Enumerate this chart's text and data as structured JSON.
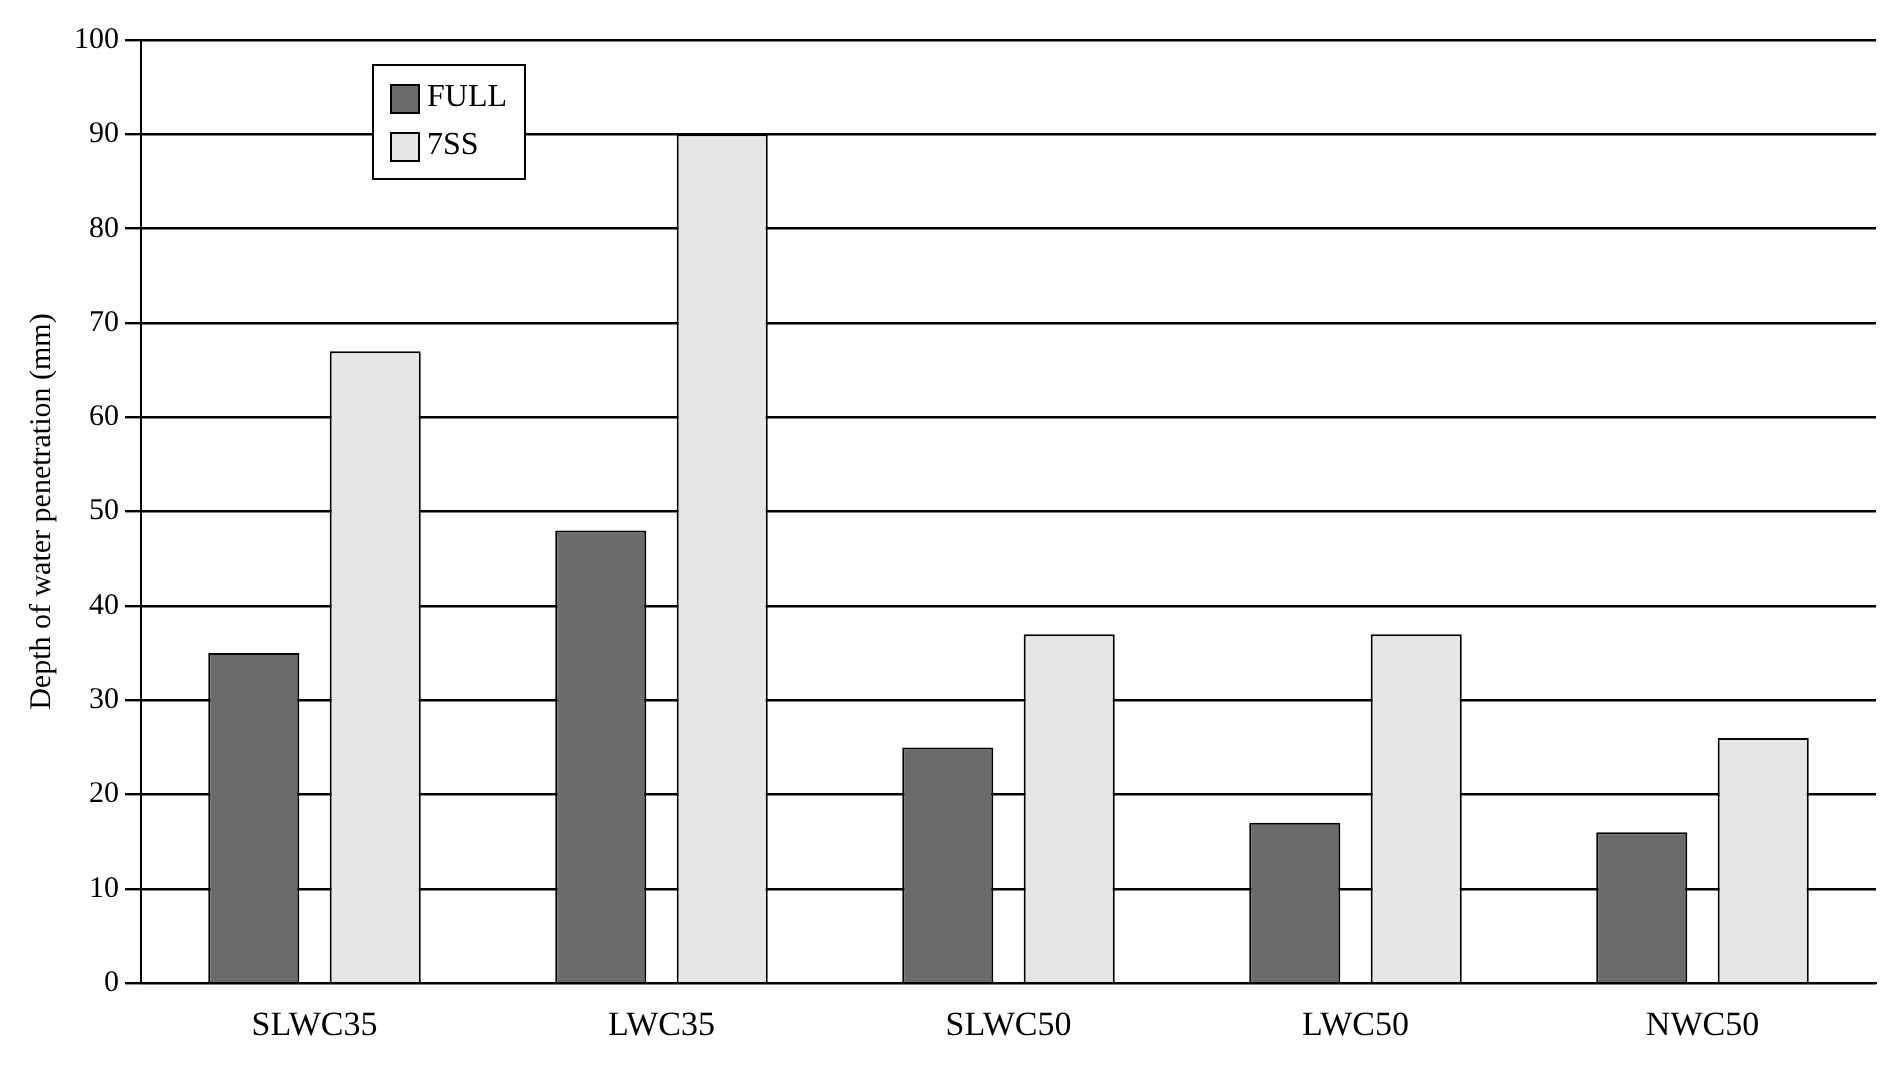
{
  "chart_data": {
    "type": "bar",
    "ylabel": "Depth of water penetration (mm)",
    "categories": [
      "SLWC35",
      "LWC35",
      "SLWC50",
      "LWC50",
      "NWC50"
    ],
    "series": [
      {
        "name": "FULL",
        "color": "#6b6b6b",
        "values": [
          35,
          48,
          25,
          17,
          16
        ]
      },
      {
        "name": "7SS",
        "color": "#e6e6e6",
        "values": [
          67,
          90,
          37,
          37,
          26
        ]
      }
    ],
    "ylim": [
      0,
      100
    ],
    "yticks": [
      0,
      10,
      20,
      30,
      40,
      50,
      60,
      70,
      80,
      90,
      100
    ],
    "grid": "y",
    "legend": "top left"
  }
}
